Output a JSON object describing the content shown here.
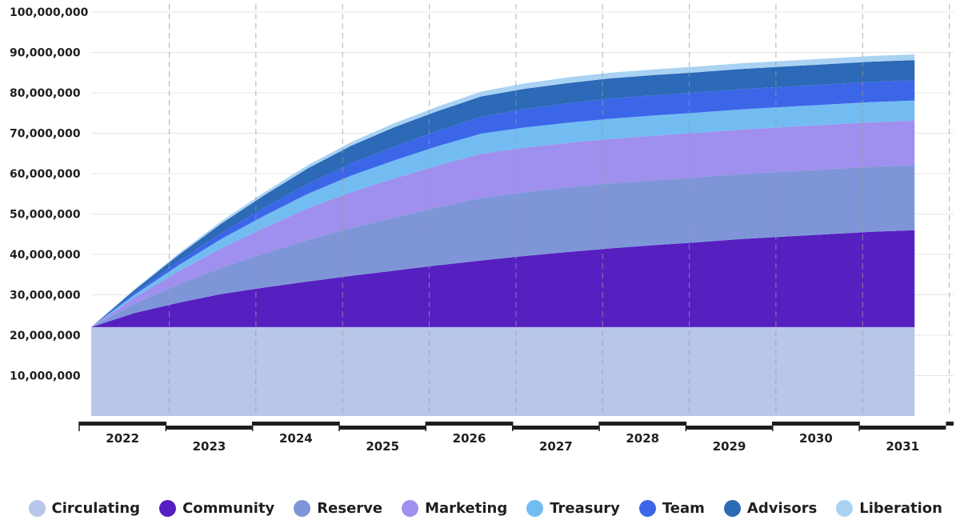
{
  "chart_data": {
    "type": "area",
    "stacked": true,
    "title": "",
    "xlabel": "",
    "ylabel": "",
    "x": [
      2022.0,
      2022.5,
      2023.0,
      2023.5,
      2024.0,
      2024.5,
      2025.0,
      2025.5,
      2026.0,
      2026.5,
      2027.0,
      2027.5,
      2028.0,
      2028.5,
      2029.0,
      2029.5,
      2030.0,
      2030.5,
      2031.0,
      2031.5
    ],
    "x_tick_labels": [
      "2022",
      "2023",
      "2024",
      "2025",
      "2026",
      "2027",
      "2028",
      "2029",
      "2030",
      "2031"
    ],
    "ylim": [
      0,
      100000000
    ],
    "y_tick_values": [
      10000000,
      20000000,
      30000000,
      40000000,
      50000000,
      60000000,
      70000000,
      80000000,
      90000000,
      100000000
    ],
    "y_tick_labels": [
      "10,000,000",
      "20,000,000",
      "30,000,000",
      "40,000,000",
      "50,000,000",
      "60,000,000",
      "70,000,000",
      "80,000,000",
      "90,000,000",
      "100,000,000"
    ],
    "grid": true,
    "legend_position": "bottom",
    "series": [
      {
        "name": "Circulating",
        "color": "#b8c6e9",
        "values": [
          22000000,
          22000000,
          22000000,
          22000000,
          22000000,
          22000000,
          22000000,
          22000000,
          22000000,
          22000000,
          22000000,
          22000000,
          22000000,
          22000000,
          22000000,
          22000000,
          22000000,
          22000000,
          22000000,
          22000000
        ]
      },
      {
        "name": "Community",
        "color": "#5620c1",
        "values": [
          0,
          3500000,
          6000000,
          8200000,
          9800000,
          11300000,
          12700000,
          14000000,
          15300000,
          16500000,
          17600000,
          18600000,
          19500000,
          20300000,
          21000000,
          21800000,
          22400000,
          23000000,
          23600000,
          24000000
        ]
      },
      {
        "name": "Reserve",
        "color": "#7e96d8",
        "values": [
          0,
          2300000,
          4500000,
          6500000,
          8500000,
          10300000,
          11800000,
          13100000,
          14400000,
          15500000,
          15800000,
          16000000,
          16100000,
          16100000,
          16100000,
          16100000,
          16100000,
          16100000,
          16100000,
          16100000
        ]
      },
      {
        "name": "Marketing",
        "color": "#9f8fee",
        "values": [
          0,
          1500000,
          3200000,
          4800000,
          6300000,
          7800000,
          8900000,
          9700000,
          10300000,
          10900000,
          11000000,
          11000000,
          11000000,
          11000000,
          11000000,
          11000000,
          11000000,
          11000000,
          11000000,
          11000000
        ]
      },
      {
        "name": "Treasury",
        "color": "#72bcf2",
        "values": [
          0,
          700000,
          1500000,
          2300000,
          3000000,
          3600000,
          4100000,
          4500000,
          4800000,
          5000000,
          5000000,
          5000000,
          5000000,
          5000000,
          5000000,
          5000000,
          5000000,
          5000000,
          5000000,
          5000000
        ]
      },
      {
        "name": "Team",
        "color": "#3b66e8",
        "values": [
          0,
          500000,
          1000000,
          1500000,
          2000000,
          2500000,
          3000000,
          3400000,
          3800000,
          4200000,
          4600000,
          4800000,
          5000000,
          5000000,
          5000000,
          5000000,
          5000000,
          5000000,
          5000000,
          5000000
        ]
      },
      {
        "name": "Advisors",
        "color": "#2c69b6",
        "values": [
          0,
          700000,
          1500000,
          2300000,
          3100000,
          3800000,
          4400000,
          4800000,
          4900000,
          5000000,
          5000000,
          5000000,
          5000000,
          5000000,
          5000000,
          5000000,
          5000000,
          5000000,
          5000000,
          5000000
        ]
      },
      {
        "name": "Liberation",
        "color": "#a9d2f3",
        "values": [
          0,
          200000,
          400000,
          600000,
          700000,
          800000,
          900000,
          1000000,
          1100000,
          1200000,
          1300000,
          1400000,
          1400000,
          1400000,
          1400000,
          1400000,
          1400000,
          1400000,
          1400000,
          1400000
        ]
      }
    ]
  }
}
